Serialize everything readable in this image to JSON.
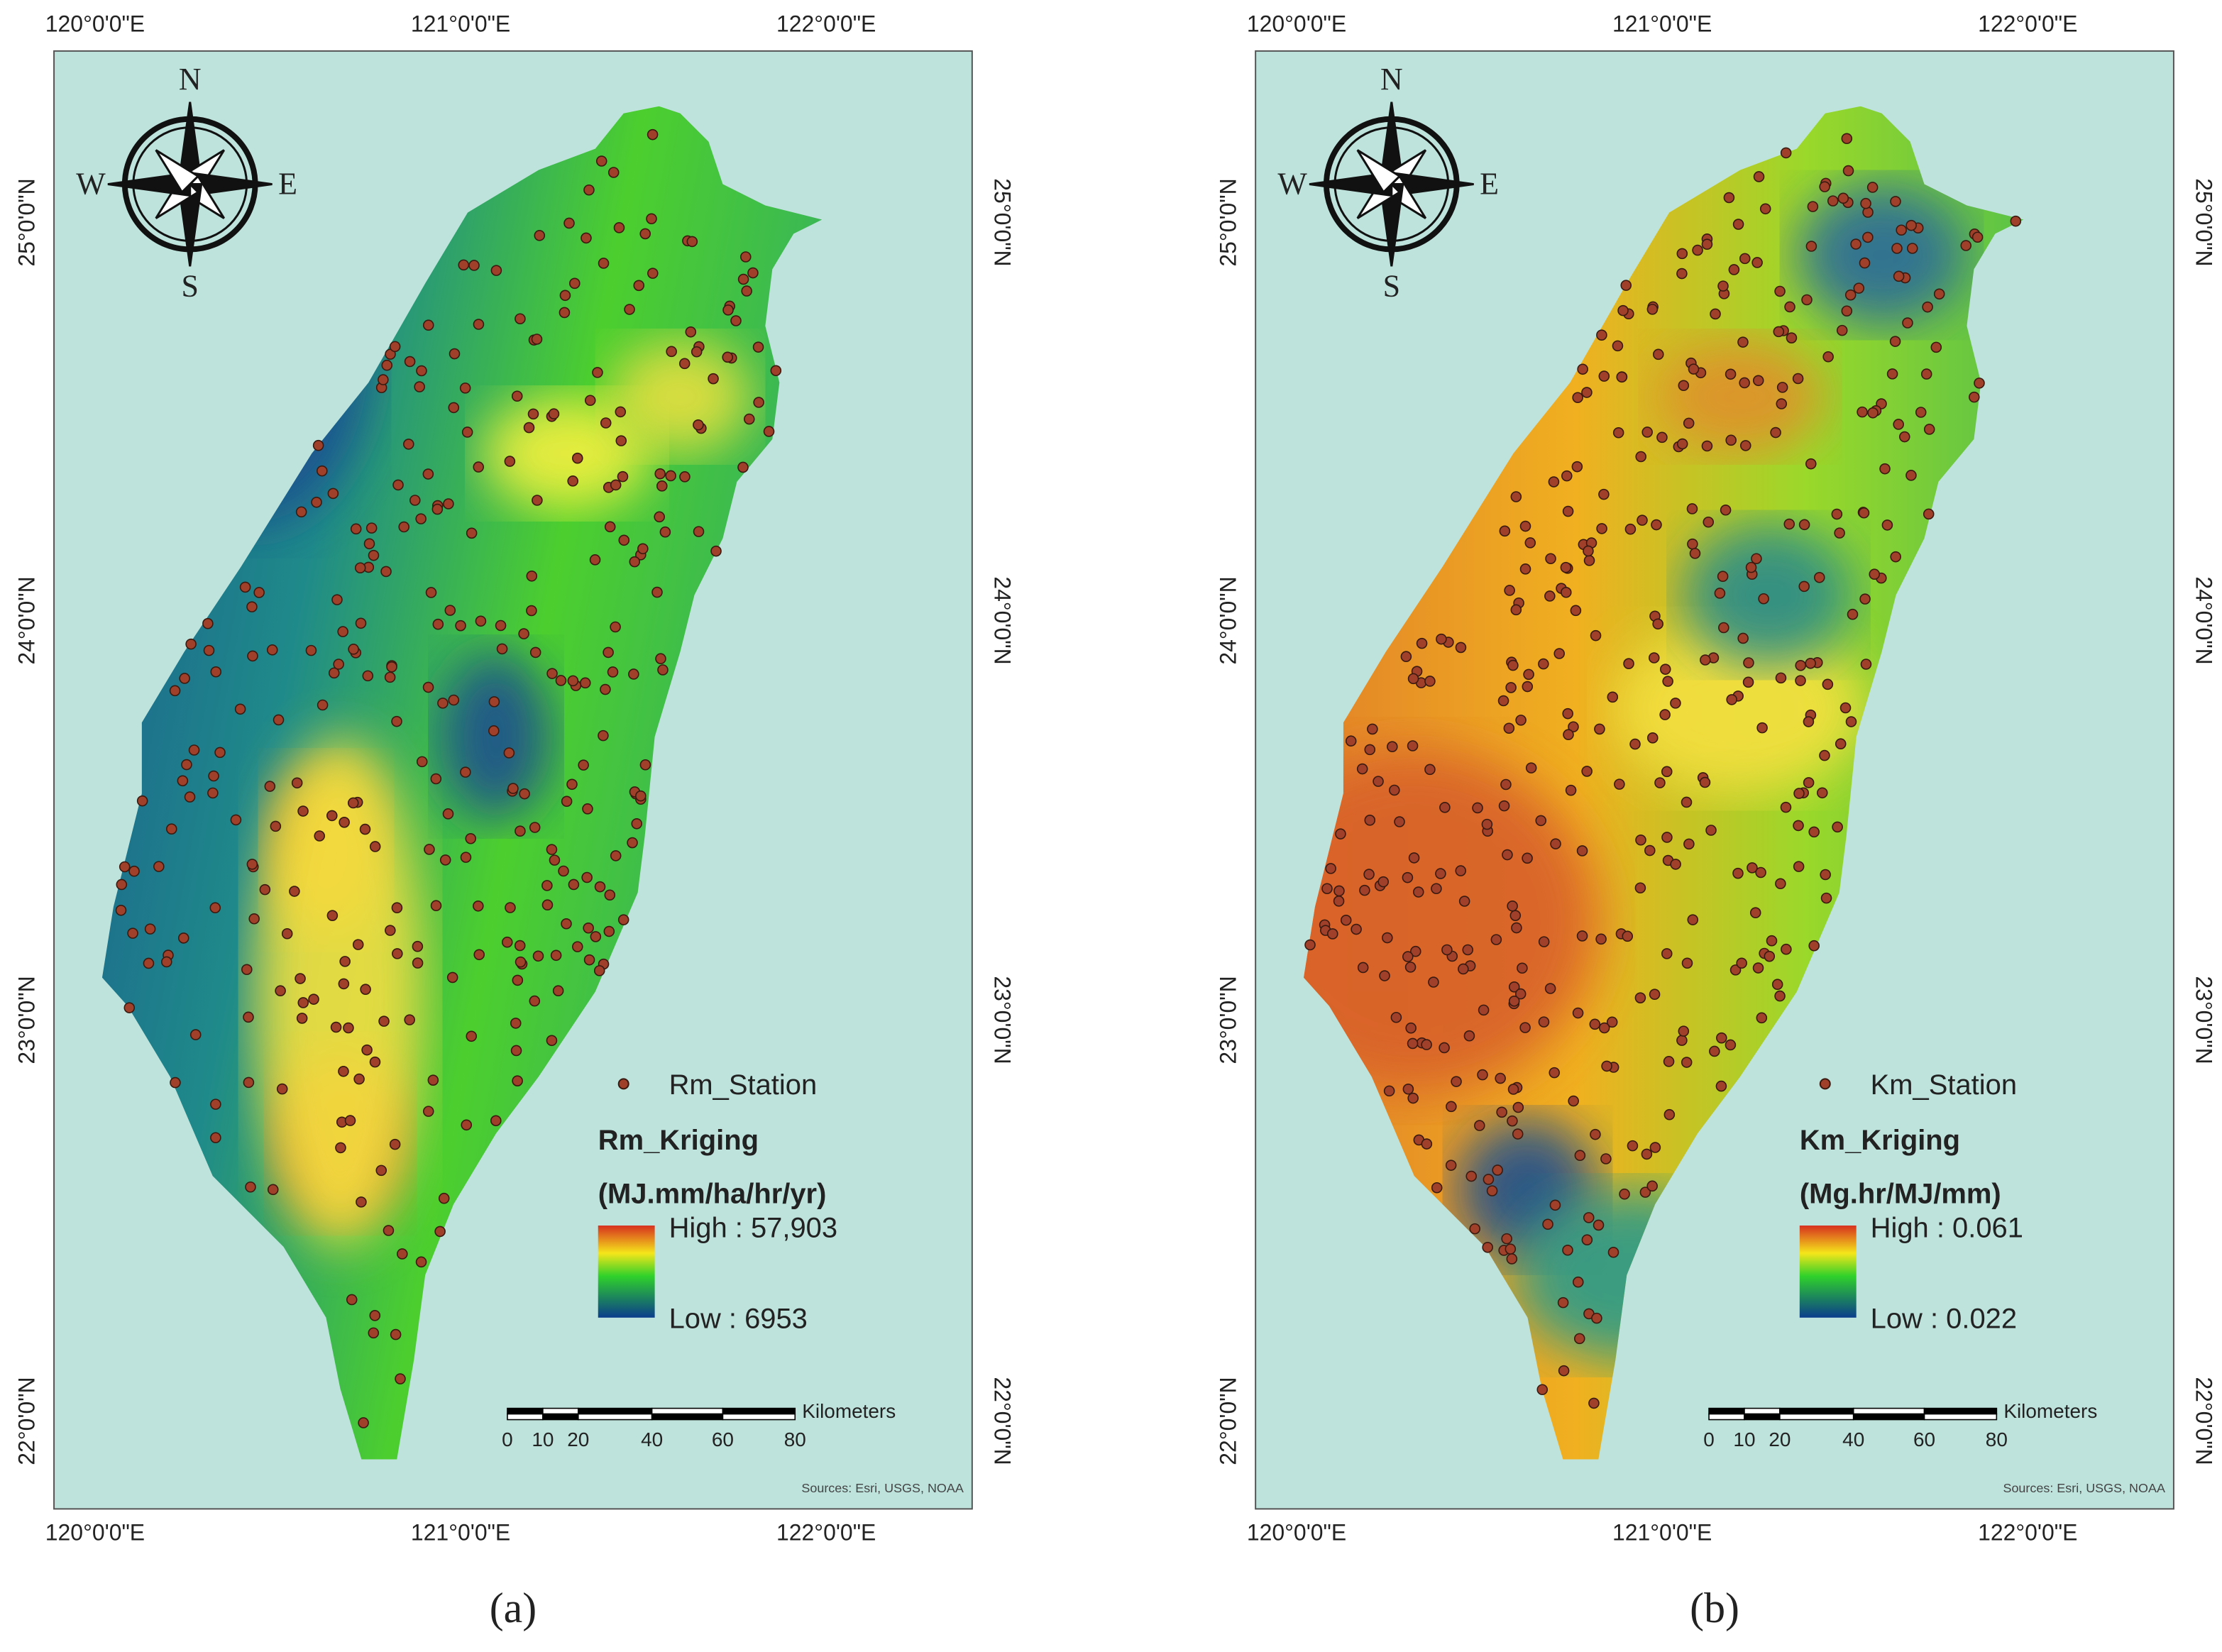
{
  "panels": [
    {
      "label": "(a)",
      "x_labels": [
        "120°0'0\"E",
        "121°0'0\"E",
        "122°0'0\"E"
      ],
      "y_labels": [
        "25°0'0\"N",
        "24°0'0\"N",
        "23°0'0\"N",
        "22°0'0\"N"
      ],
      "compass": [
        "N",
        "S",
        "W",
        "E"
      ],
      "legend": {
        "station": "Rm_Station",
        "title": "Rm_Kriging",
        "unit": "(MJ.mm/ha/hr/yr)",
        "high": "High : 57,903",
        "low": "Low : 6953"
      },
      "scale": {
        "ticks": [
          "0",
          "10",
          "20",
          "40",
          "60",
          "80"
        ],
        "unit": "Kilometers"
      },
      "source": "Sources: Esri, USGS, NOAA"
    },
    {
      "label": "(b)",
      "x_labels": [
        "120°0'0\"E",
        "121°0'0\"E",
        "122°0'0\"E"
      ],
      "y_labels": [
        "25°0'0\"N",
        "24°0'0\"N",
        "23°0'0\"N",
        "22°0'0\"N"
      ],
      "compass": [
        "N",
        "S",
        "W",
        "E"
      ],
      "legend": {
        "station": "Km_Station",
        "title": "Km_Kriging",
        "unit": "(Mg.hr/MJ/mm)",
        "high": "High : 0.061",
        "low": "Low : 0.022"
      },
      "scale": {
        "ticks": [
          "0",
          "10",
          "20",
          "40",
          "60",
          "80"
        ],
        "unit": "Kilometers"
      },
      "source": "Sources: Esri, USGS, NOAA"
    }
  ]
}
